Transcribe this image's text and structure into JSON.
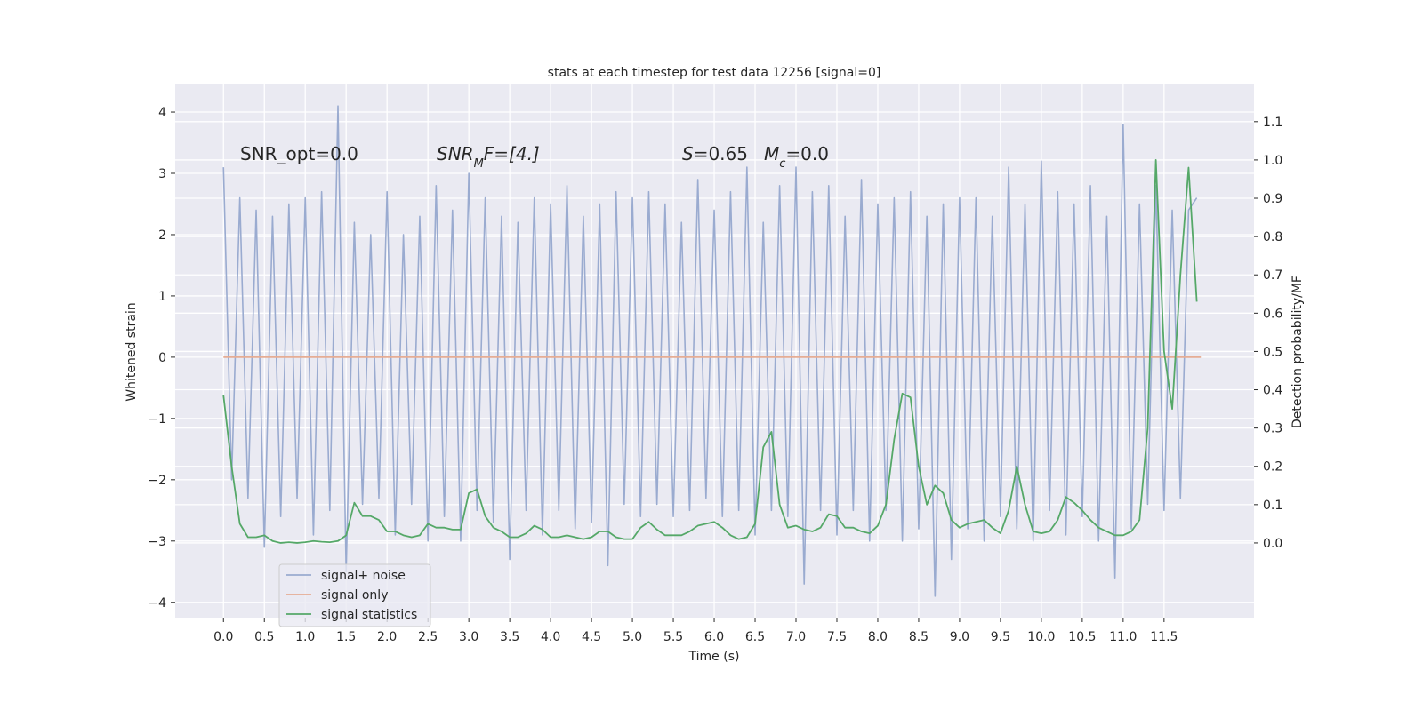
{
  "chart_data": {
    "type": "line",
    "title": "stats at each timestep for test data 12256 [signal=0]",
    "xlabel": "Time (s)",
    "ylabel": "Whitened strain",
    "y2label": "Detection probability/MF",
    "xlim": [
      -0.59,
      12.6
    ],
    "ylim": [
      -4.25,
      4.45
    ],
    "y2lim": [
      -0.195,
      1.197
    ],
    "xticks": [
      {
        "value": 0,
        "label": "0.0"
      },
      0.5,
      {
        "value": 1,
        "label": "1.0"
      },
      1.5,
      {
        "value": 2,
        "label": "2.0"
      },
      2.5,
      {
        "value": 3,
        "label": "3.0"
      },
      3.5,
      {
        "value": 4,
        "label": "4.0"
      },
      4.5,
      {
        "value": 5,
        "label": "5.0"
      },
      5.5,
      {
        "value": 6,
        "label": "6.0"
      },
      6.5,
      {
        "value": 7,
        "label": "7.0"
      },
      7.5,
      {
        "value": 8,
        "label": "8.0"
      },
      8.5,
      {
        "value": 9,
        "label": "9.0"
      },
      9.5,
      {
        "value": 10,
        "label": "10.0"
      },
      10.5,
      {
        "value": 11,
        "label": "11.0"
      },
      11.5
    ],
    "yticks": [
      {
        "value": -4,
        "label": "−4"
      },
      {
        "value": -3,
        "label": "−3"
      },
      {
        "value": -2,
        "label": "−2"
      },
      {
        "value": -1,
        "label": "−1"
      },
      0,
      1,
      2,
      3,
      4
    ],
    "y2ticks": [
      {
        "value": 0,
        "label": "0.0"
      },
      0.1,
      0.2,
      0.3,
      0.4,
      0.5,
      0.6,
      0.7,
      0.8,
      0.9,
      {
        "value": 1,
        "label": "1.0"
      },
      1.1
    ],
    "grid": true,
    "legend": "lower left",
    "annotations": [
      {
        "text": "SNR_opt=0.0"
      },
      {
        "text": "SNR",
        "subscript": "M",
        "suffix": "F=[4.]"
      },
      {
        "text": "S",
        "suffix": "=0.65"
      },
      {
        "text": "M",
        "subscript": "c",
        "suffix": "=0.0"
      }
    ],
    "series": [
      {
        "name": "signal+ noise",
        "color": "#9aabd0",
        "x": [
          0,
          0.1,
          0.2,
          0.3,
          0.4,
          0.5,
          0.6,
          0.7,
          0.8,
          0.9,
          1,
          1.1,
          1.2,
          1.3,
          1.4,
          1.5,
          1.6,
          1.7,
          1.8,
          1.9,
          2,
          2.1,
          2.2,
          2.3,
          2.4,
          2.5,
          2.6,
          2.7,
          2.8,
          2.9,
          3,
          3.1,
          3.2,
          3.3,
          3.4,
          3.5,
          3.6,
          3.7,
          3.8,
          3.9,
          4,
          4.1,
          4.2,
          4.3,
          4.4,
          4.5,
          4.6,
          4.7,
          4.8,
          4.9,
          5,
          5.1,
          5.2,
          5.3,
          5.4,
          5.5,
          5.6,
          5.7,
          5.8,
          5.9,
          6,
          6.1,
          6.2,
          6.3,
          6.4,
          6.5,
          6.6,
          6.7,
          6.8,
          6.9,
          7,
          7.1,
          7.2,
          7.3,
          7.4,
          7.5,
          7.6,
          7.7,
          7.8,
          7.9,
          8,
          8.1,
          8.2,
          8.3,
          8.4,
          8.5,
          8.6,
          8.7,
          8.8,
          8.9,
          9,
          9.1,
          9.2,
          9.3,
          9.4,
          9.5,
          9.6,
          9.7,
          9.8,
          9.9,
          10,
          10.1,
          10.2,
          10.3,
          10.4,
          10.5,
          10.6,
          10.7,
          10.8,
          10.9,
          11,
          11.1,
          11.2,
          11.3,
          11.4,
          11.5,
          11.6,
          11.7,
          11.8,
          11.9
        ],
        "values": [
          3.1,
          -2.0,
          2.6,
          -2.3,
          2.4,
          -3.1,
          2.3,
          -2.6,
          2.5,
          -2.3,
          2.6,
          -2.9,
          2.7,
          -2.5,
          4.1,
          -3.5,
          2.2,
          -2.4,
          2.0,
          -2.3,
          2.7,
          -2.9,
          2.0,
          -2.4,
          2.3,
          -3.0,
          2.8,
          -2.6,
          2.4,
          -3.0,
          3.0,
          -2.5,
          2.6,
          -2.7,
          2.3,
          -3.3,
          2.2,
          -2.5,
          2.6,
          -2.9,
          2.5,
          -2.5,
          2.8,
          -2.8,
          2.3,
          -2.7,
          2.5,
          -3.4,
          2.7,
          -2.4,
          2.6,
          -2.6,
          2.7,
          -2.4,
          2.5,
          -2.6,
          2.2,
          -2.5,
          2.9,
          -2.3,
          2.4,
          -2.6,
          2.7,
          -2.5,
          3.1,
          -2.9,
          2.2,
          -2.5,
          2.8,
          -2.6,
          3.1,
          -3.7,
          2.7,
          -2.5,
          2.8,
          -2.9,
          2.3,
          -2.5,
          2.9,
          -3.0,
          2.5,
          -2.5,
          2.6,
          -3.0,
          2.7,
          -2.8,
          2.3,
          -3.9,
          2.5,
          -3.3,
          2.6,
          -2.8,
          2.6,
          -3.0,
          2.3,
          -2.6,
          3.1,
          -2.8,
          2.5,
          -3.0,
          3.2,
          -2.5,
          2.7,
          -2.9,
          2.5,
          -2.6,
          2.8,
          -3.0,
          2.3,
          -3.6,
          3.8,
          -2.8,
          2.5,
          -2.4,
          2.8,
          -2.5,
          2.4,
          -2.3,
          2.4,
          2.6
        ]
      },
      {
        "name": "signal only",
        "color": "#e6ad94",
        "x": [
          0,
          11.95
        ],
        "values": [
          0,
          0
        ]
      },
      {
        "name": "signal statistics",
        "color": "#55a868",
        "axis": "y2",
        "x": [
          0,
          0.1,
          0.2,
          0.3,
          0.4,
          0.5,
          0.6,
          0.7,
          0.8,
          0.9,
          1,
          1.1,
          1.2,
          1.3,
          1.4,
          1.5,
          1.6,
          1.7,
          1.8,
          1.9,
          2,
          2.1,
          2.2,
          2.3,
          2.4,
          2.5,
          2.6,
          2.7,
          2.8,
          2.9,
          3,
          3.1,
          3.2,
          3.3,
          3.4,
          3.5,
          3.6,
          3.7,
          3.8,
          3.9,
          4,
          4.1,
          4.2,
          4.3,
          4.4,
          4.5,
          4.6,
          4.7,
          4.8,
          4.9,
          5,
          5.1,
          5.2,
          5.3,
          5.4,
          5.5,
          5.6,
          5.7,
          5.8,
          5.9,
          6,
          6.1,
          6.2,
          6.3,
          6.4,
          6.5,
          6.6,
          6.7,
          6.8,
          6.9,
          7,
          7.1,
          7.2,
          7.3,
          7.4,
          7.5,
          7.6,
          7.7,
          7.8,
          7.9,
          8,
          8.1,
          8.2,
          8.3,
          8.4,
          8.5,
          8.6,
          8.7,
          8.8,
          8.9,
          9,
          9.1,
          9.2,
          9.3,
          9.4,
          9.5,
          9.6,
          9.7,
          9.8,
          9.9,
          10,
          10.1,
          10.2,
          10.3,
          10.4,
          10.5,
          10.6,
          10.7,
          10.8,
          10.9,
          11,
          11.1,
          11.2,
          11.3,
          11.4,
          11.5,
          11.6,
          11.7,
          11.8,
          11.9
        ],
        "values": [
          0.385,
          0.2,
          0.05,
          0.015,
          0.015,
          0.02,
          0.005,
          0,
          0.002,
          0,
          0.002,
          0.005,
          0.003,
          0.002,
          0.005,
          0.02,
          0.105,
          0.07,
          0.07,
          0.06,
          0.03,
          0.03,
          0.02,
          0.015,
          0.02,
          0.05,
          0.04,
          0.04,
          0.035,
          0.035,
          0.13,
          0.14,
          0.07,
          0.04,
          0.03,
          0.015,
          0.015,
          0.025,
          0.045,
          0.035,
          0.015,
          0.015,
          0.02,
          0.015,
          0.01,
          0.015,
          0.03,
          0.03,
          0.015,
          0.01,
          0.01,
          0.04,
          0.055,
          0.035,
          0.02,
          0.02,
          0.02,
          0.03,
          0.045,
          0.05,
          0.055,
          0.04,
          0.02,
          0.01,
          0.015,
          0.05,
          0.25,
          0.29,
          0.1,
          0.04,
          0.045,
          0.035,
          0.03,
          0.04,
          0.075,
          0.07,
          0.04,
          0.04,
          0.03,
          0.025,
          0.045,
          0.1,
          0.27,
          0.39,
          0.38,
          0.2,
          0.1,
          0.15,
          0.13,
          0.06,
          0.04,
          0.05,
          0.055,
          0.06,
          0.04,
          0.025,
          0.085,
          0.2,
          0.1,
          0.03,
          0.025,
          0.03,
          0.06,
          0.12,
          0.105,
          0.085,
          0.06,
          0.04,
          0.03,
          0.02,
          0.02,
          0.03,
          0.06,
          0.3,
          1.0,
          0.5,
          0.35,
          0.7,
          0.98,
          0.63
        ]
      }
    ]
  }
}
